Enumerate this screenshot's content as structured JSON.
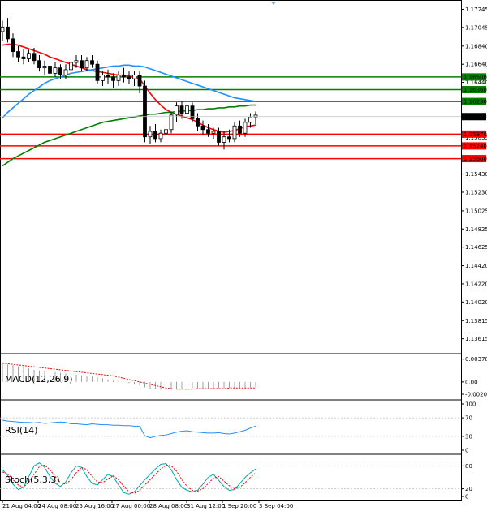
{
  "chart_data": {
    "type": "candlestick",
    "grid": false,
    "price_axis": {
      "ticks": [
        "1.17245",
        "1.17045",
        "1.16840",
        "1.16640",
        "1.16440",
        "1.15835",
        "1.15430",
        "1.15230",
        "1.15025",
        "1.14825",
        "1.14625",
        "1.14420",
        "1.14220",
        "1.14020",
        "1.13815",
        "1.13615"
      ],
      "range": [
        1.1346,
        1.1733
      ]
    },
    "time_axis": {
      "labels": [
        "21 Aug 04:00",
        "24 Aug 08:00",
        "25 Aug 16:00",
        "27 Aug 00:00",
        "28 Aug 08:00",
        "31 Aug 12:00",
        "1 Sep 20:00",
        "3 Sep 04:00"
      ]
    },
    "current_price": "1.16063",
    "levels": [
      {
        "value": "1.16500",
        "color": "#008000"
      },
      {
        "value": "1.16360",
        "color": "#008000"
      },
      {
        "value": "1.16230",
        "color": "#008000"
      },
      {
        "value": "1.15870",
        "color": "#ff0000"
      },
      {
        "value": "1.15740",
        "color": "#ff0000"
      },
      {
        "value": "1.15600",
        "color": "#ff0000"
      }
    ],
    "candles": [
      [
        1.17,
        1.1712,
        1.169,
        1.1705
      ],
      [
        1.1705,
        1.1715,
        1.1688,
        1.1692
      ],
      [
        1.1692,
        1.1698,
        1.1672,
        1.1678
      ],
      [
        1.1678,
        1.1684,
        1.1666,
        1.1672
      ],
      [
        1.1672,
        1.168,
        1.1664,
        1.167
      ],
      [
        1.167,
        1.168,
        1.1666,
        1.1676
      ],
      [
        1.1676,
        1.1682,
        1.1664,
        1.1668
      ],
      [
        1.1668,
        1.1674,
        1.1656,
        1.166
      ],
      [
        1.166,
        1.1668,
        1.1652,
        1.1662
      ],
      [
        1.1662,
        1.1668,
        1.165,
        1.1654
      ],
      [
        1.1654,
        1.1666,
        1.165,
        1.166
      ],
      [
        1.166,
        1.1664,
        1.1648,
        1.1652
      ],
      [
        1.1652,
        1.1664,
        1.1648,
        1.1658
      ],
      [
        1.1658,
        1.167,
        1.1654,
        1.1666
      ],
      [
        1.1666,
        1.1674,
        1.166,
        1.1668
      ],
      [
        1.1668,
        1.1674,
        1.1656,
        1.166
      ],
      [
        1.166,
        1.1672,
        1.1656,
        1.1668
      ],
      [
        1.1668,
        1.1674,
        1.166,
        1.1664
      ],
      [
        1.1664,
        1.1668,
        1.1642,
        1.1646
      ],
      [
        1.1646,
        1.1656,
        1.164,
        1.1652
      ],
      [
        1.1652,
        1.1658,
        1.1642,
        1.165
      ],
      [
        1.165,
        1.1654,
        1.1638,
        1.1646
      ],
      [
        1.1646,
        1.1656,
        1.164,
        1.1652
      ],
      [
        1.1652,
        1.166,
        1.1644,
        1.165
      ],
      [
        1.165,
        1.1656,
        1.1642,
        1.1648
      ],
      [
        1.1648,
        1.1656,
        1.164,
        1.1652
      ],
      [
        1.1652,
        1.1656,
        1.1632,
        1.164
      ],
      [
        1.164,
        1.1646,
        1.1578,
        1.1584
      ],
      [
        1.1584,
        1.1596,
        1.1576,
        1.159
      ],
      [
        1.159,
        1.1598,
        1.1578,
        1.1582
      ],
      [
        1.1582,
        1.1592,
        1.1578,
        1.1588
      ],
      [
        1.1588,
        1.1596,
        1.1582,
        1.1592
      ],
      [
        1.1592,
        1.1612,
        1.1588,
        1.1608
      ],
      [
        1.1608,
        1.1622,
        1.16,
        1.1618
      ],
      [
        1.1618,
        1.1624,
        1.1604,
        1.161
      ],
      [
        1.161,
        1.1622,
        1.1604,
        1.1618
      ],
      [
        1.1618,
        1.1622,
        1.16,
        1.1604
      ],
      [
        1.1604,
        1.161,
        1.159,
        1.1596
      ],
      [
        1.1596,
        1.1602,
        1.1586,
        1.1592
      ],
      [
        1.1592,
        1.1598,
        1.1584,
        1.1588
      ],
      [
        1.1588,
        1.1594,
        1.1582,
        1.159
      ],
      [
        1.159,
        1.1594,
        1.1574,
        1.1578
      ],
      [
        1.1578,
        1.159,
        1.157,
        1.1584
      ],
      [
        1.1584,
        1.1592,
        1.1578,
        1.1582
      ],
      [
        1.1582,
        1.16,
        1.1578,
        1.1596
      ],
      [
        1.1596,
        1.1602,
        1.1584,
        1.1588
      ],
      [
        1.1588,
        1.1604,
        1.1584,
        1.16
      ],
      [
        1.16,
        1.161,
        1.1594,
        1.1606
      ],
      [
        1.1606,
        1.1612,
        1.1598,
        1.1608
      ]
    ],
    "indicators": [
      {
        "name": "MACD(12,26,9)",
        "ticks": [
          "0.003781",
          "0.00",
          "-0.002031"
        ],
        "range": [
          -0.0023,
          0.004
        ],
        "histogram": [
          0.003,
          0.0029,
          0.0028,
          0.0026,
          0.0024,
          0.0022,
          0.002,
          0.0019,
          0.0018,
          0.0017,
          0.0016,
          0.0015,
          0.0014,
          0.0013,
          0.0012,
          0.0011,
          0.001,
          0.0009,
          0.0008,
          0.0006,
          0.0004,
          0.0002,
          0.0001,
          0.0,
          -0.0002,
          -0.0004,
          -0.0006,
          -0.0009,
          -0.0011,
          -0.0012,
          -0.0013,
          -0.0013,
          -0.0013,
          -0.0012,
          -0.0011,
          -0.0011,
          -0.001,
          -0.001,
          -0.001,
          -0.001,
          -0.001,
          -0.001,
          -0.001,
          -0.001,
          -0.001,
          -0.0009,
          -0.0009,
          -0.0009,
          -0.0009
        ],
        "signal": [
          0.0031,
          0.003,
          0.0029,
          0.0028,
          0.0027,
          0.0026,
          0.0025,
          0.0024,
          0.0023,
          0.0022,
          0.0021,
          0.002,
          0.0019,
          0.0018,
          0.0017,
          0.0016,
          0.0015,
          0.0014,
          0.0013,
          0.0012,
          0.0011,
          0.001,
          0.0008,
          0.0006,
          0.0004,
          0.0002,
          0.0,
          -0.0002,
          -0.0004,
          -0.0006,
          -0.0008,
          -0.001,
          -0.0011,
          -0.0012,
          -0.0012,
          -0.0012,
          -0.0012,
          -0.0011,
          -0.0011,
          -0.0011,
          -0.0011,
          -0.0011,
          -0.0011,
          -0.001,
          -0.001,
          -0.001,
          -0.001,
          -0.001,
          -0.001
        ]
      },
      {
        "name": "RSI(14)",
        "ticks": [
          "100",
          "70",
          "30",
          "0"
        ],
        "range": [
          0,
          100
        ],
        "values": [
          65,
          63,
          62,
          61,
          60,
          60,
          59,
          60,
          58,
          59,
          60,
          61,
          60,
          57,
          57,
          56,
          55,
          57,
          56,
          55,
          55,
          54,
          54,
          53,
          53,
          52,
          52,
          31,
          27,
          30,
          32,
          33,
          36,
          39,
          41,
          42,
          40,
          39,
          38,
          37,
          37,
          38,
          36,
          35,
          37,
          40,
          43,
          48,
          52
        ]
      },
      {
        "name": "Stoch(5,3,3)",
        "ticks": [
          "80",
          "20",
          "0"
        ],
        "range": [
          0,
          100
        ],
        "k": [
          70,
          55,
          32,
          18,
          24,
          52,
          80,
          88,
          76,
          52,
          34,
          26,
          38,
          62,
          80,
          76,
          52,
          34,
          30,
          44,
          58,
          52,
          30,
          10,
          6,
          12,
          28,
          44,
          58,
          72,
          84,
          86,
          70,
          44,
          24,
          16,
          12,
          16,
          32,
          50,
          58,
          42,
          26,
          16,
          18,
          34,
          50,
          62,
          72
        ],
        "d": [
          64,
          60,
          44,
          30,
          24,
          38,
          58,
          78,
          82,
          70,
          52,
          36,
          32,
          44,
          62,
          76,
          70,
          52,
          38,
          36,
          46,
          54,
          44,
          26,
          12,
          8,
          16,
          30,
          44,
          58,
          72,
          82,
          80,
          66,
          44,
          26,
          16,
          14,
          20,
          34,
          48,
          52,
          40,
          28,
          20,
          24,
          36,
          50,
          62
        ]
      }
    ],
    "moving_averages": [
      {
        "color": "#ff0000",
        "values": [
          1.1685,
          1.1686,
          1.1686,
          1.1685,
          1.1683,
          1.1681,
          1.1679,
          1.1677,
          1.1675,
          1.1672,
          1.167,
          1.1668,
          1.1666,
          1.1664,
          1.1662,
          1.166,
          1.1658,
          1.1657,
          1.1656,
          1.1655,
          1.1654,
          1.1653,
          1.1652,
          1.1652,
          1.1651,
          1.165,
          1.1648,
          1.164,
          1.1632,
          1.1625,
          1.1619,
          1.1614,
          1.1611,
          1.1609,
          1.1607,
          1.1605,
          1.1603,
          1.16,
          1.1597,
          1.1594,
          1.1592,
          1.159,
          1.1589,
          1.159,
          1.1591,
          1.1593,
          1.1595,
          1.1596,
          1.1597
        ]
      },
      {
        "color": "#1e90ff",
        "values": [
          1.1605,
          1.1611,
          1.1616,
          1.1621,
          1.1626,
          1.1631,
          1.1635,
          1.1639,
          1.1643,
          1.1646,
          1.1648,
          1.165,
          1.1652,
          1.1654,
          1.1655,
          1.1656,
          1.1657,
          1.1658,
          1.1659,
          1.166,
          1.1661,
          1.1662,
          1.1662,
          1.1663,
          1.1663,
          1.1662,
          1.1662,
          1.1661,
          1.1659,
          1.1657,
          1.1655,
          1.1653,
          1.1651,
          1.1649,
          1.1647,
          1.1645,
          1.1643,
          1.1641,
          1.1639,
          1.1637,
          1.1635,
          1.1633,
          1.1631,
          1.1629,
          1.1627,
          1.1626,
          1.1625,
          1.1624,
          1.1623
        ]
      },
      {
        "color": "#008000",
        "values": [
          1.1552,
          1.1556,
          1.156,
          1.1563,
          1.1566,
          1.1569,
          1.1572,
          1.1575,
          1.1578,
          1.158,
          1.1582,
          1.1584,
          1.1586,
          1.1588,
          1.159,
          1.1592,
          1.1594,
          1.1596,
          1.1598,
          1.16,
          1.1601,
          1.1602,
          1.1603,
          1.1604,
          1.1605,
          1.1606,
          1.1607,
          1.1608,
          1.1609,
          1.1609,
          1.161,
          1.1611,
          1.1611,
          1.1612,
          1.1612,
          1.1613,
          1.1613,
          1.1614,
          1.1614,
          1.1615,
          1.1615,
          1.1616,
          1.1616,
          1.1617,
          1.1617,
          1.1618,
          1.1618,
          1.1619,
          1.1619
        ]
      }
    ]
  }
}
